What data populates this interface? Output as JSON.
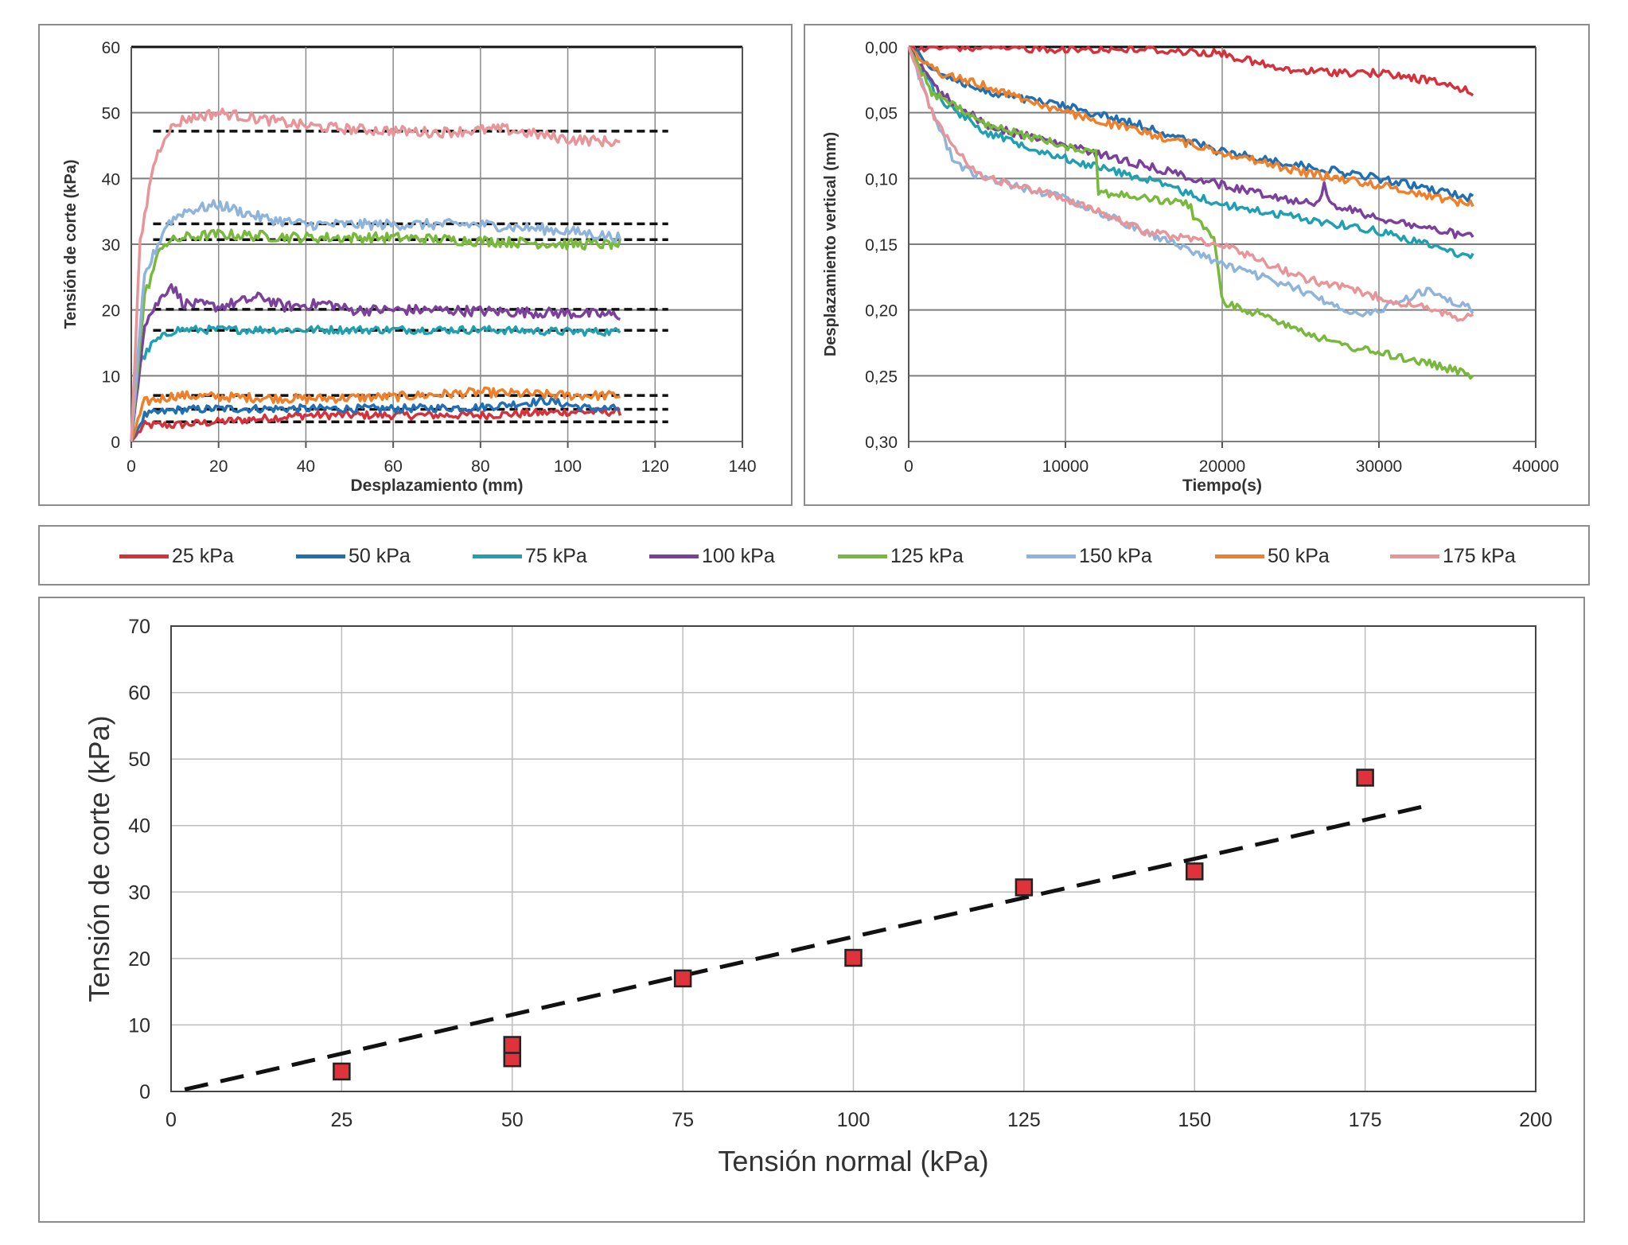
{
  "colors": {
    "25 kPa": "#d6303a",
    "50 kPa": "#1f6fb5",
    "75 kPa": "#1ea0b1",
    "100 kPa": "#7b3f9c",
    "125 kPa": "#78b83a",
    "150 kPa": "#8fb4dc",
    "50 kPa (2)": "#f07f2a",
    "175 kPa": "#e8959a",
    "marker": "#e0323a",
    "trend": "#111111",
    "grid": "#7a7a7a",
    "axis": "#333333"
  },
  "legend": {
    "items": [
      {
        "label": "25 kPa",
        "color": "#d6303a"
      },
      {
        "label": "50 kPa",
        "color": "#1f6fb5"
      },
      {
        "label": "75 kPa",
        "color": "#1ea0b1"
      },
      {
        "label": "100 kPa",
        "color": "#7b3f9c"
      },
      {
        "label": "125 kPa",
        "color": "#78b83a"
      },
      {
        "label": "150 kPa",
        "color": "#8fb4dc"
      },
      {
        "label": "50 kPa",
        "color": "#f07f2a"
      },
      {
        "label": "175 kPa",
        "color": "#e8959a"
      }
    ]
  },
  "chart_data": [
    {
      "type": "line",
      "xlabel": "Desplazamiento (mm)",
      "ylabel": "Tensión de corte (kPa)",
      "xlim": [
        0,
        140
      ],
      "ylim": [
        0,
        60
      ],
      "xticks": [
        "0",
        "20",
        "40",
        "60",
        "80",
        "100",
        "120",
        "140"
      ],
      "yticks": [
        "0",
        "10",
        "20",
        "30",
        "40",
        "50",
        "60"
      ],
      "grid": "horizontal",
      "series": [
        {
          "name": "25 kPa",
          "color": "#d6303a",
          "noise": 0.6,
          "points": [
            [
              0,
              0
            ],
            [
              3,
              2.5
            ],
            [
              10,
              2.5
            ],
            [
              20,
              3
            ],
            [
              40,
              4
            ],
            [
              60,
              4
            ],
            [
              80,
              4
            ],
            [
              100,
              4.5
            ],
            [
              112,
              4.5
            ]
          ]
        },
        {
          "name": "50 kPa",
          "color": "#1f6fb5",
          "noise": 0.6,
          "points": [
            [
              0,
              0
            ],
            [
              3,
              4
            ],
            [
              10,
              4.8
            ],
            [
              20,
              5
            ],
            [
              40,
              5
            ],
            [
              60,
              5
            ],
            [
              80,
              5.2
            ],
            [
              95,
              6.2
            ],
            [
              105,
              5
            ],
            [
              112,
              5
            ]
          ]
        },
        {
          "name": "50 kPa",
          "color": "#f07f2a",
          "noise": 0.7,
          "points": [
            [
              0,
              0
            ],
            [
              3,
              6
            ],
            [
              10,
              7
            ],
            [
              20,
              6.8
            ],
            [
              40,
              6.5
            ],
            [
              60,
              6.8
            ],
            [
              80,
              7.5
            ],
            [
              100,
              7
            ],
            [
              112,
              7
            ]
          ]
        },
        {
          "name": "75 kPa",
          "color": "#1ea0b1",
          "noise": 0.6,
          "points": [
            [
              0,
              0
            ],
            [
              2,
              12
            ],
            [
              5,
              15
            ],
            [
              10,
              17
            ],
            [
              20,
              17
            ],
            [
              40,
              17
            ],
            [
              60,
              17
            ],
            [
              80,
              17
            ],
            [
              100,
              16.7
            ],
            [
              112,
              16.7
            ]
          ]
        },
        {
          "name": "100 kPa",
          "color": "#7b3f9c",
          "noise": 0.8,
          "points": [
            [
              0,
              0
            ],
            [
              3,
              18
            ],
            [
              6,
              21
            ],
            [
              9,
              24
            ],
            [
              12,
              21
            ],
            [
              20,
              20.5
            ],
            [
              30,
              22
            ],
            [
              35,
              20.5
            ],
            [
              45,
              21
            ],
            [
              50,
              20
            ],
            [
              70,
              20
            ],
            [
              100,
              19.5
            ],
            [
              112,
              19.2
            ]
          ]
        },
        {
          "name": "125 kPa",
          "color": "#78b83a",
          "noise": 0.8,
          "points": [
            [
              0,
              0
            ],
            [
              3,
              22
            ],
            [
              7,
              30
            ],
            [
              12,
              31
            ],
            [
              20,
              31.5
            ],
            [
              40,
              31
            ],
            [
              60,
              31
            ],
            [
              80,
              30.5
            ],
            [
              100,
              30
            ],
            [
              112,
              30
            ]
          ]
        },
        {
          "name": "150 kPa",
          "color": "#8fb4dc",
          "noise": 0.8,
          "points": [
            [
              0,
              0
            ],
            [
              3,
              25
            ],
            [
              8,
              33
            ],
            [
              12,
              35
            ],
            [
              20,
              36
            ],
            [
              30,
              34
            ],
            [
              40,
              33
            ],
            [
              60,
              33
            ],
            [
              80,
              33
            ],
            [
              100,
              32
            ],
            [
              112,
              31
            ]
          ]
        },
        {
          "name": "175 kPa",
          "color": "#e8959a",
          "noise": 0.8,
          "points": [
            [
              0,
              0
            ],
            [
              2,
              30
            ],
            [
              5,
              42
            ],
            [
              8,
              47
            ],
            [
              12,
              49
            ],
            [
              20,
              50
            ],
            [
              30,
              49
            ],
            [
              40,
              48
            ],
            [
              50,
              47.5
            ],
            [
              70,
              47
            ],
            [
              85,
              47.5
            ],
            [
              100,
              46
            ],
            [
              112,
              45.5
            ]
          ]
        }
      ],
      "reference_lines": [
        {
          "x": [
            5,
            123
          ],
          "y": 47.2
        },
        {
          "x": [
            5,
            123
          ],
          "y": 33.1
        },
        {
          "x": [
            5,
            123
          ],
          "y": 30.7
        },
        {
          "x": [
            5,
            123
          ],
          "y": 20.1
        },
        {
          "x": [
            5,
            123
          ],
          "y": 16.9
        },
        {
          "x": [
            5,
            123
          ],
          "y": 7.0
        },
        {
          "x": [
            5,
            123
          ],
          "y": 4.9
        },
        {
          "x": [
            5,
            123
          ],
          "y": 3.0
        }
      ]
    },
    {
      "type": "line",
      "xlabel": "Tiempo(s)",
      "ylabel": "Desplazamiento vertical (mm)",
      "xlim": [
        0,
        40000
      ],
      "ylim": [
        0,
        0.3
      ],
      "y_inverted": true,
      "xticks": [
        "0",
        "10000",
        "20000",
        "30000",
        "40000"
      ],
      "yticks": [
        "0,00",
        "0,05",
        "0,10",
        "0,15",
        "0,20",
        "0,25",
        "0,30"
      ],
      "grid": "horizontal",
      "series": [
        {
          "name": "25 kPa",
          "color": "#d6303a",
          "noise": 0.003,
          "points": [
            [
              0,
              0
            ],
            [
              5000,
              0.001
            ],
            [
              15000,
              0.002
            ],
            [
              20000,
              0.005
            ],
            [
              24000,
              0.018
            ],
            [
              30000,
              0.02
            ],
            [
              33000,
              0.025
            ],
            [
              36000,
              0.034
            ]
          ]
        },
        {
          "name": "50 kPa",
          "color": "#1f6fb5",
          "noise": 0.003,
          "points": [
            [
              0,
              0
            ],
            [
              2000,
              0.02
            ],
            [
              5000,
              0.035
            ],
            [
              10000,
              0.045
            ],
            [
              15000,
              0.06
            ],
            [
              20000,
              0.08
            ],
            [
              25000,
              0.09
            ],
            [
              30000,
              0.1
            ],
            [
              36000,
              0.115
            ]
          ]
        },
        {
          "name": "50 kPa",
          "color": "#f07f2a",
          "noise": 0.003,
          "points": [
            [
              0,
              0
            ],
            [
              2000,
              0.02
            ],
            [
              5000,
              0.03
            ],
            [
              10000,
              0.05
            ],
            [
              15000,
              0.065
            ],
            [
              20000,
              0.08
            ],
            [
              25000,
              0.095
            ],
            [
              30000,
              0.105
            ],
            [
              36000,
              0.12
            ]
          ]
        },
        {
          "name": "75 kPa",
          "color": "#1ea0b1",
          "noise": 0.003,
          "points": [
            [
              0,
              0
            ],
            [
              2000,
              0.04
            ],
            [
              5000,
              0.065
            ],
            [
              10000,
              0.085
            ],
            [
              15000,
              0.1
            ],
            [
              20000,
              0.12
            ],
            [
              25000,
              0.13
            ],
            [
              30000,
              0.14
            ],
            [
              36000,
              0.16
            ]
          ]
        },
        {
          "name": "100 kPa",
          "color": "#7b3f9c",
          "noise": 0.003,
          "points": [
            [
              0,
              0
            ],
            [
              2000,
              0.035
            ],
            [
              5000,
              0.06
            ],
            [
              10000,
              0.075
            ],
            [
              15000,
              0.09
            ],
            [
              20000,
              0.105
            ],
            [
              26000,
              0.12
            ],
            [
              26500,
              0.105
            ],
            [
              27000,
              0.12
            ],
            [
              30000,
              0.13
            ],
            [
              36000,
              0.145
            ]
          ]
        },
        {
          "name": "125 kPa",
          "color": "#78b83a",
          "noise": 0.003,
          "points": [
            [
              0,
              0
            ],
            [
              1500,
              0.035
            ],
            [
              5000,
              0.06
            ],
            [
              10000,
              0.075
            ],
            [
              12000,
              0.08
            ],
            [
              12100,
              0.11
            ],
            [
              15000,
              0.115
            ],
            [
              18000,
              0.12
            ],
            [
              18200,
              0.13
            ],
            [
              19500,
              0.145
            ],
            [
              19800,
              0.175
            ],
            [
              20000,
              0.195
            ],
            [
              23000,
              0.205
            ],
            [
              27000,
              0.225
            ],
            [
              33000,
              0.24
            ],
            [
              36000,
              0.25
            ]
          ]
        },
        {
          "name": "150 kPa",
          "color": "#8fb4dc",
          "noise": 0.003,
          "points": [
            [
              0,
              0
            ],
            [
              1500,
              0.05
            ],
            [
              3000,
              0.09
            ],
            [
              5000,
              0.1
            ],
            [
              10000,
              0.115
            ],
            [
              15000,
              0.14
            ],
            [
              20000,
              0.165
            ],
            [
              25000,
              0.185
            ],
            [
              29000,
              0.205
            ],
            [
              30000,
              0.2
            ],
            [
              33000,
              0.185
            ],
            [
              36000,
              0.2
            ]
          ]
        },
        {
          "name": "175 kPa",
          "color": "#e8959a",
          "noise": 0.003,
          "points": [
            [
              0,
              0
            ],
            [
              1500,
              0.05
            ],
            [
              3000,
              0.08
            ],
            [
              5000,
              0.1
            ],
            [
              10000,
              0.115
            ],
            [
              15000,
              0.14
            ],
            [
              20000,
              0.15
            ],
            [
              25000,
              0.175
            ],
            [
              30000,
              0.19
            ],
            [
              35000,
              0.205
            ],
            [
              36000,
              0.205
            ]
          ]
        }
      ]
    },
    {
      "type": "scatter",
      "xlabel": "Tensión normal (kPa)",
      "ylabel": "Tensión de corte (kPa)",
      "xlim": [
        0,
        200
      ],
      "ylim": [
        0,
        70
      ],
      "xticks": [
        "0",
        "25",
        "50",
        "75",
        "100",
        "125",
        "150",
        "175",
        "200"
      ],
      "yticks": [
        "0",
        "10",
        "20",
        "30",
        "40",
        "50",
        "60",
        "70"
      ],
      "grid": "both",
      "points": [
        [
          25,
          3
        ],
        [
          50,
          5
        ],
        [
          50,
          7
        ],
        [
          75,
          17
        ],
        [
          100,
          20.1
        ],
        [
          125,
          30.7
        ],
        [
          150,
          33.1
        ],
        [
          175,
          47.2
        ]
      ],
      "trendline": {
        "x": [
          2,
          185
        ],
        "y": [
          0.3,
          43.2
        ]
      }
    }
  ]
}
